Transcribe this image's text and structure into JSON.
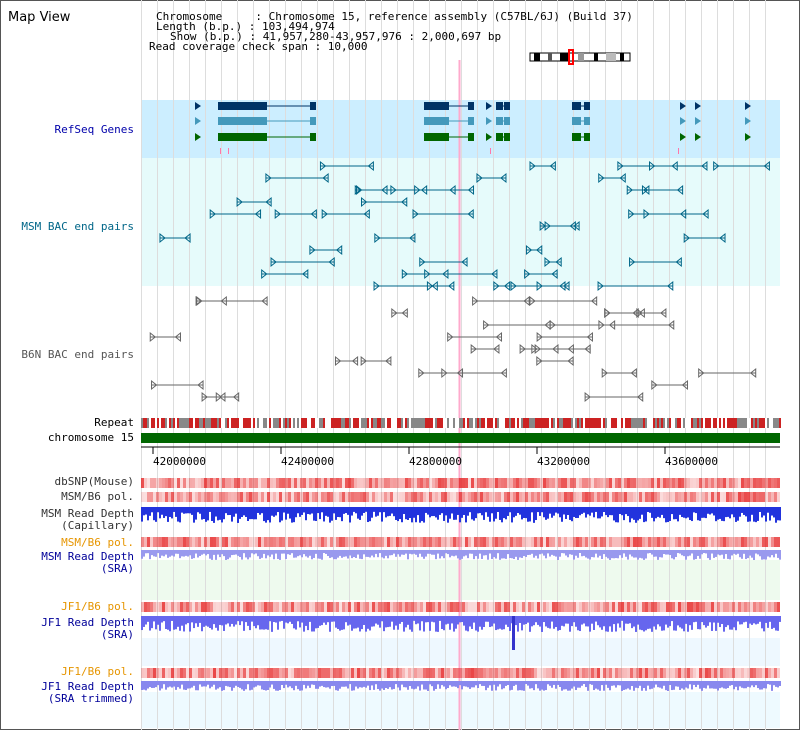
{
  "header": {
    "view_title": "Map View",
    "lines": [
      "Chromosome     : Chromosome 15, reference assembly (C57BL/6J) (Build 37)",
      "Length (b.p.) : 103,494,974",
      "Show (b.p.) : 41,957,280-43,957,976 : 2,000,697 bp",
      "Read coverage check span : 10,000"
    ]
  },
  "tracks": {
    "refseq": "RefSeq Genes",
    "msm_bac": "MSM BAC end pairs",
    "b6n_bac": "B6N BAC end pairs",
    "repeat": "Repeat",
    "chromosome": "chromosome 15",
    "dbsnp": "dbSNP(Mouse)",
    "msm_b6_pol_1": "MSM/B6 pol.",
    "msm_depth_cap_1": "MSM Read Depth",
    "msm_depth_cap_2": "(Capillary)",
    "msm_b6_pol_2": "MSM/B6 pol.",
    "msm_depth_sra_1": "MSM Read Depth",
    "msm_depth_sra_2": "(SRA)",
    "jf1_b6_pol_1": "JF1/B6 pol.",
    "jf1_depth_sra_1": "JF1 Read Depth",
    "jf1_depth_sra_2": "(SRA)",
    "jf1_b6_pol_2": "JF1/B6 pol.",
    "jf1_depth_trim_1": "JF1 Read Depth",
    "jf1_depth_trim_2": "(SRA trimmed)"
  },
  "axis": {
    "ticks": [
      "42000000",
      "42400000",
      "42800000",
      "43200000",
      "43600000"
    ]
  },
  "colors": {
    "refseq_label": "#0000aa",
    "msm_label": "#006688",
    "b6n_label": "#555555",
    "snp_label": "#333333",
    "depth_label": "#000099",
    "jf1_pol_label": "#e69500",
    "chromosome_bar": "#006600",
    "refseq_bg": "#cceeff",
    "bac_bg": "#e6fbfb",
    "cursor_line": "#ffaacc"
  }
}
